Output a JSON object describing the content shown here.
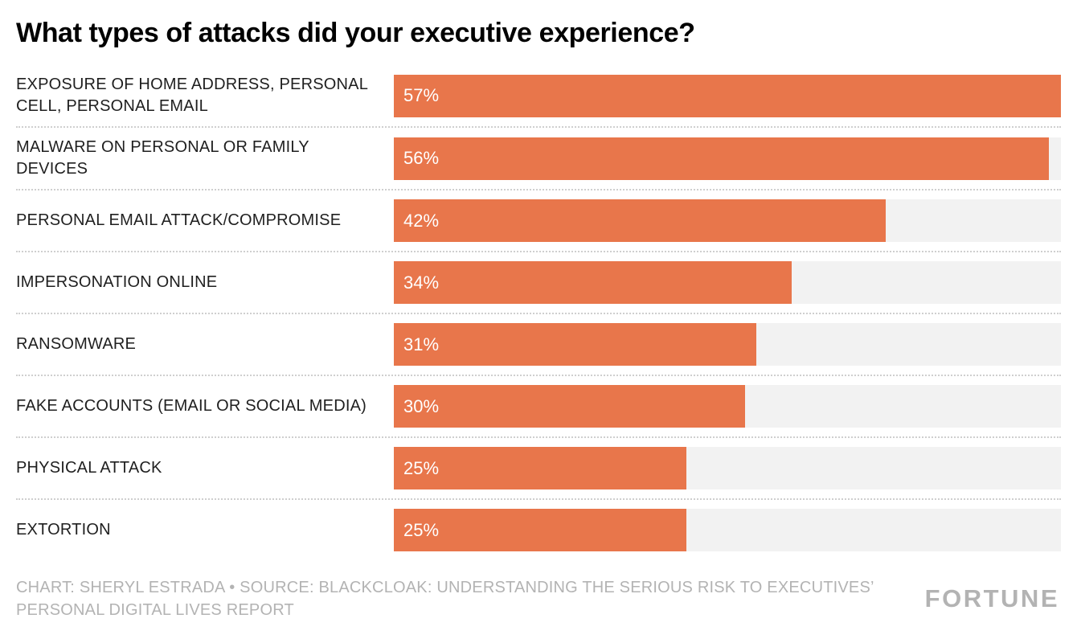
{
  "title": "What types of attacks did your executive experience?",
  "chart_data": {
    "type": "bar",
    "orientation": "horizontal",
    "title": "What types of attacks did your executive experience?",
    "categories": [
      "EXPOSURE OF HOME ADDRESS, PERSONAL CELL, PERSONAL EMAIL",
      "MALWARE ON PERSONAL OR FAMILY DEVICES",
      "PERSONAL EMAIL ATTACK/COMPROMISE",
      "IMPERSONATION ONLINE",
      "RANSOMWARE",
      "FAKE ACCOUNTS (EMAIL OR SOCIAL MEDIA)",
      "PHYSICAL ATTACK",
      "EXTORTION"
    ],
    "values": [
      57,
      56,
      42,
      34,
      31,
      30,
      25,
      25
    ],
    "value_suffix": "%",
    "xlim": [
      0,
      57
    ],
    "grid": false,
    "legend": "none",
    "bar_color": "#e8764b",
    "track_color": "#f2f2f2"
  },
  "footer": {
    "credit": "CHART: SHERYL ESTRADA • SOURCE: BLACKCLOAK: UNDERSTANDING THE SERIOUS RISK TO EXECUTIVES’ PERSONAL DIGITAL LIVES REPORT",
    "brand": "FORTUNE"
  }
}
